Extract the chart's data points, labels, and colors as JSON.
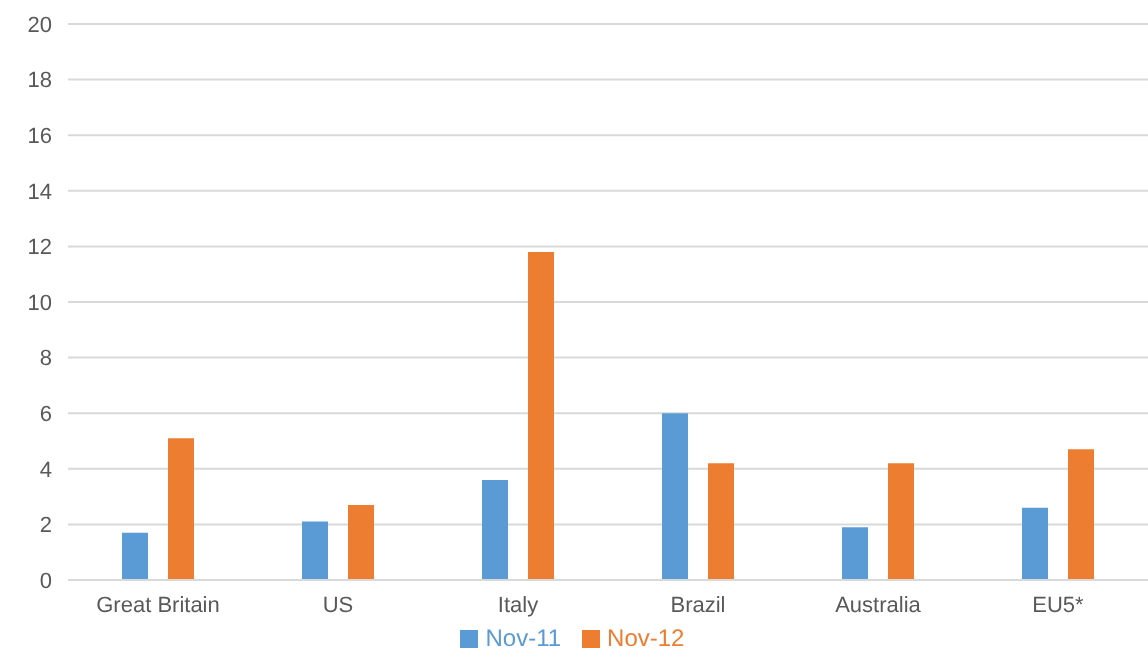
{
  "chart_data": {
    "type": "bar",
    "categories": [
      "Great Britain",
      "US",
      "Italy",
      "Brazil",
      "Australia",
      "EU5*"
    ],
    "series": [
      {
        "name": "Nov-11",
        "color": "#5b9bd5",
        "values": [
          1.7,
          2.1,
          3.6,
          6.0,
          1.9,
          2.6
        ]
      },
      {
        "name": "Nov-12",
        "color": "#ed7d31",
        "values": [
          5.1,
          2.7,
          11.8,
          4.2,
          4.2,
          4.7
        ]
      }
    ],
    "ylim": [
      0,
      20
    ],
    "yticks": [
      0,
      2,
      4,
      6,
      8,
      10,
      12,
      14,
      16,
      18,
      20
    ],
    "grid": "y",
    "legend": "bottom"
  }
}
